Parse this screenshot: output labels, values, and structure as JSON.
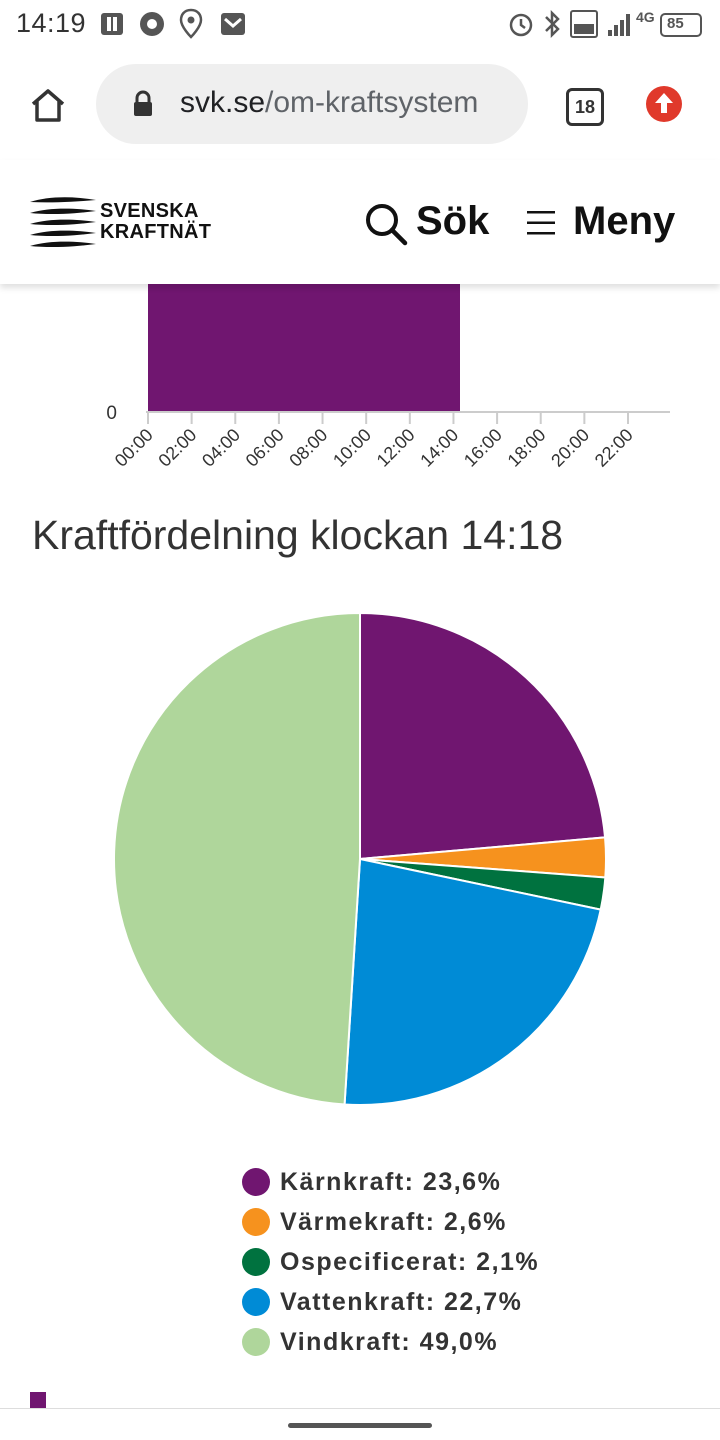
{
  "status_bar": {
    "time": "14:19",
    "network": "4G",
    "battery": "85"
  },
  "browser": {
    "url_domain": "svk.se",
    "url_path": "/om-kraftsystem",
    "tab_count": "18"
  },
  "site_header": {
    "logo_line1": "SVENSKA",
    "logo_line2": "KRAFTNÄT",
    "search_label": "Sök",
    "menu_label": "Meny"
  },
  "colors": {
    "karnkraft": "#701670",
    "varmekraft": "#F6921E",
    "ospecificerat": "#00723F",
    "vattenkraft": "#008BD6",
    "vindkraft": "#AFD69B"
  },
  "chart_data": [
    {
      "type": "bar",
      "partial_view": true,
      "x_ticks": [
        "00:00",
        "02:00",
        "04:00",
        "06:00",
        "08:00",
        "10:00",
        "12:00",
        "14:00",
        "16:00",
        "18:00",
        "20:00",
        "22:00"
      ],
      "y_ticks_visible": [
        "0"
      ],
      "series": [
        {
          "color": "#701670",
          "x_start": "00:00",
          "x_end": "14:18"
        }
      ]
    },
    {
      "type": "pie",
      "title": "Kraftfördelning klockan 14:18",
      "categories": [
        "Kärnkraft",
        "Värmekraft",
        "Ospecificerat",
        "Vattenkraft",
        "Vindkraft"
      ],
      "values": [
        23.6,
        2.6,
        2.1,
        22.7,
        49.0
      ],
      "colors": [
        "#701670",
        "#F6921E",
        "#00723F",
        "#008BD6",
        "#AFD69B"
      ],
      "legend_labels": [
        "Kärnkraft: 23,6%",
        "Värmekraft: 2,6%",
        "Ospecificerat: 2,1%",
        "Vattenkraft: 22,7%",
        "Vindkraft: 49,0%"
      ],
      "legend_position": "bottom"
    }
  ]
}
